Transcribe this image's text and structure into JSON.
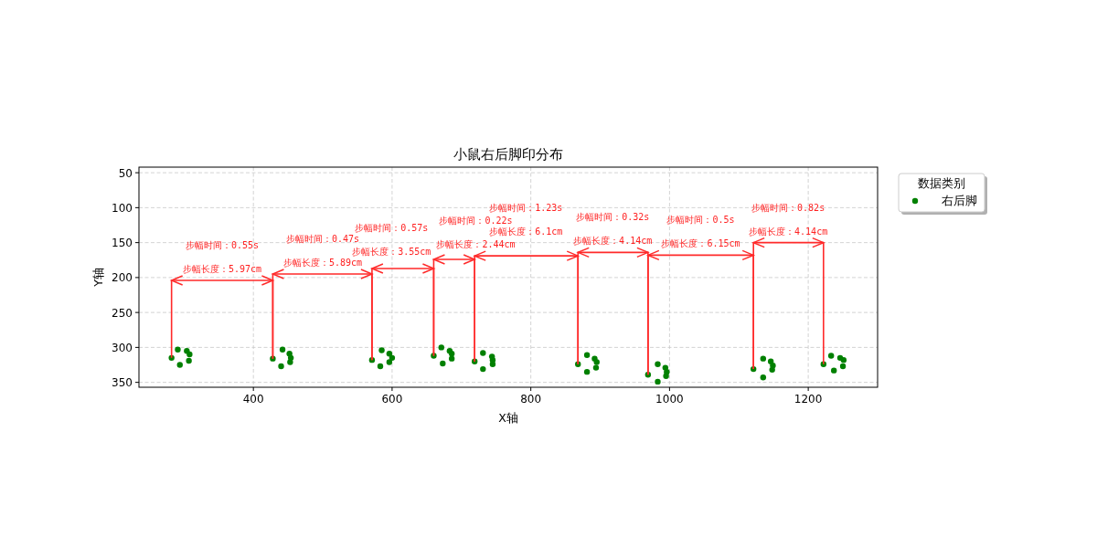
{
  "chart_data": {
    "type": "scatter",
    "title": "小鼠右后脚印分布",
    "xlabel": "X轴",
    "ylabel": "Y轴",
    "legend_title": "数据类别",
    "xlim": [
      235,
      1300
    ],
    "ylim": [
      357,
      42
    ],
    "xticks": [
      400,
      600,
      800,
      1000,
      1200
    ],
    "yticks": [
      50,
      100,
      150,
      200,
      250,
      300,
      350
    ],
    "grid": true,
    "legend": "top right",
    "marker": "circle",
    "series": [
      {
        "name": "右后脚",
        "color": "#008000",
        "x": [
          282,
          291,
          304,
          308,
          307,
          294,
          428,
          442,
          452,
          454,
          453,
          440,
          571,
          585,
          596,
          600,
          596,
          583,
          660,
          671,
          683,
          686,
          686,
          673,
          719,
          731,
          744,
          745,
          745,
          731,
          868,
          881,
          892,
          895,
          894,
          881,
          969,
          983,
          994,
          996,
          995,
          983,
          1121,
          1135,
          1146,
          1149,
          1148,
          1135,
          1222,
          1233,
          1246,
          1251,
          1250,
          1237
        ],
        "values": [
          315,
          303,
          305,
          310,
          319,
          325,
          316,
          303,
          309,
          315,
          321,
          327,
          318,
          304,
          309,
          315,
          321,
          327,
          312,
          300,
          305,
          309,
          316,
          323,
          320,
          308,
          313,
          318,
          324,
          331,
          324,
          311,
          316,
          321,
          329,
          335,
          339,
          324,
          329,
          335,
          341,
          349,
          331,
          316,
          320,
          326,
          332,
          343,
          324,
          312,
          315,
          318,
          327,
          333
        ]
      },
      {
        "type": "line",
        "color": "#ff2a2a",
        "marker": "none",
        "x": [
          282,
          282,
          428,
          428
        ],
        "values": [
          315,
          204,
          204,
          316
        ]
      },
      {
        "type": "line",
        "color": "#ff2a2a",
        "marker": "none",
        "x": [
          428,
          428,
          571,
          571
        ],
        "values": [
          316,
          195,
          195,
          318
        ]
      },
      {
        "type": "line",
        "color": "#ff2a2a",
        "marker": "none",
        "x": [
          571,
          571,
          660,
          660
        ],
        "values": [
          318,
          187,
          187,
          312
        ]
      },
      {
        "type": "line",
        "color": "#ff2a2a",
        "marker": "none",
        "x": [
          660,
          660,
          719,
          719
        ],
        "values": [
          312,
          174,
          174,
          320
        ]
      },
      {
        "type": "line",
        "color": "#ff2a2a",
        "marker": "none",
        "x": [
          719,
          719,
          868,
          868
        ],
        "values": [
          320,
          169,
          169,
          324
        ]
      },
      {
        "type": "line",
        "color": "#ff2a2a",
        "marker": "none",
        "x": [
          868,
          868,
          969,
          969
        ],
        "values": [
          324,
          164,
          164,
          339
        ]
      },
      {
        "type": "line",
        "color": "#ff2a2a",
        "marker": "none",
        "x": [
          969,
          969,
          1121,
          1121
        ],
        "values": [
          339,
          168,
          168,
          331
        ]
      },
      {
        "type": "line",
        "color": "#ff2a2a",
        "marker": "none",
        "x": [
          1121,
          1121,
          1222,
          1222
        ],
        "values": [
          331,
          150,
          150,
          324
        ]
      }
    ],
    "annotations": [
      {
        "text": "步幅长度：5.97cm",
        "x": 355,
        "y": 204
      },
      "步幅时间：0.55s",
      {
        "text": "步幅长度：5.89cm",
        "x": 500,
        "y": 195
      },
      "步幅时间：0.47s",
      {
        "text": "步幅长度：3.55cm",
        "x": 615,
        "y": 187
      },
      "步幅时间：0.57s",
      {
        "text": "步幅长度：2.44cm",
        "x": 689,
        "y": 174
      },
      "步幅时间：0.22s",
      {
        "text": "步幅长度：6.1cm",
        "x": 793,
        "y": 169
      },
      "步幅时间：1.23s",
      {
        "text": "步幅长度：4.14cm",
        "x": 918,
        "y": 164
      },
      "步幅时间：0.32s",
      {
        "text": "步幅长度：6.15cm",
        "x": 1045,
        "y": 168
      },
      "步幅时间：0.5s",
      {
        "text": "步幅长度：4.14cm",
        "x": 1171,
        "y": 150
      },
      "步幅时间：0.82s"
    ]
  }
}
